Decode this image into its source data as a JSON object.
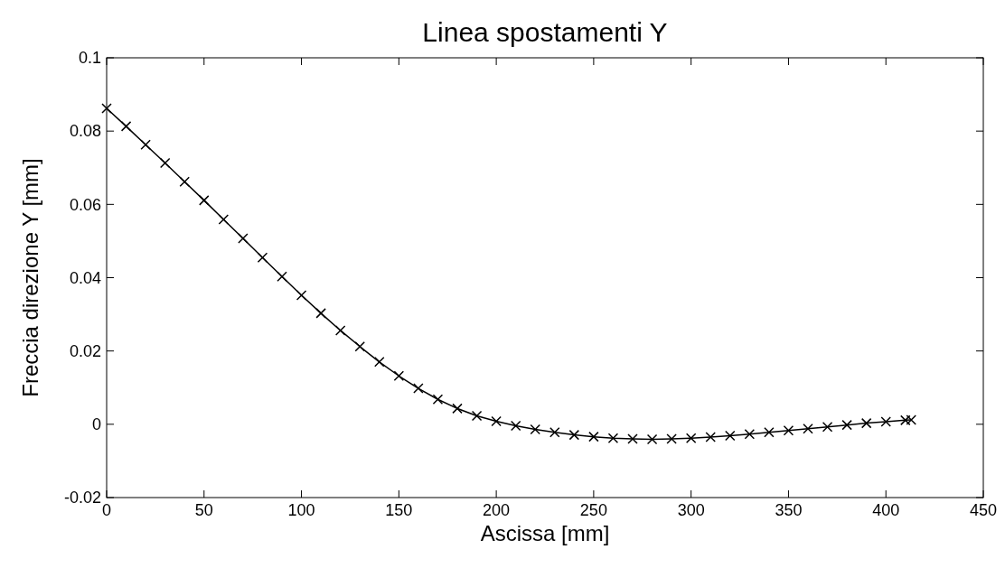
{
  "chart_data": {
    "type": "line",
    "title": "Linea spostamenti Y",
    "xlabel": "Ascissa [mm]",
    "ylabel": "Freccia direzione Y [mm]",
    "xlim": [
      0,
      450
    ],
    "xticks": [
      0,
      50,
      100,
      150,
      200,
      250,
      300,
      350,
      400,
      450
    ],
    "ylim": [
      -0.02,
      0.1
    ],
    "yticks": [
      -0.02,
      0,
      0.02,
      0.04,
      0.06,
      0.08,
      0.1
    ],
    "grid": false,
    "marker": "cross",
    "line_style": "solid",
    "series": [
      {
        "color": "#000000",
        "x": [
          0,
          10,
          20,
          30,
          40,
          50,
          60,
          70,
          80,
          90,
          100,
          110,
          120,
          130,
          140,
          150,
          160,
          170,
          180,
          190,
          200,
          210,
          220,
          230,
          240,
          250,
          260,
          270,
          280,
          290,
          300,
          310,
          320,
          330,
          340,
          350,
          360,
          370,
          380,
          390,
          400,
          410,
          413
        ],
        "values": [
          0.0862,
          0.0813,
          0.0763,
          0.0713,
          0.0662,
          0.0611,
          0.0559,
          0.0507,
          0.0455,
          0.0403,
          0.0352,
          0.0303,
          0.0256,
          0.0212,
          0.017,
          0.0132,
          0.0098,
          0.0068,
          0.0043,
          0.0023,
          0.0008,
          -0.0004,
          -0.0014,
          -0.0022,
          -0.0029,
          -0.0034,
          -0.0038,
          -0.004,
          -0.0041,
          -0.004,
          -0.0038,
          -0.0035,
          -0.0031,
          -0.0027,
          -0.0022,
          -0.0017,
          -0.0012,
          -0.0007,
          -0.0002,
          0.0003,
          0.0007,
          0.0011,
          0.0012
        ]
      }
    ]
  }
}
